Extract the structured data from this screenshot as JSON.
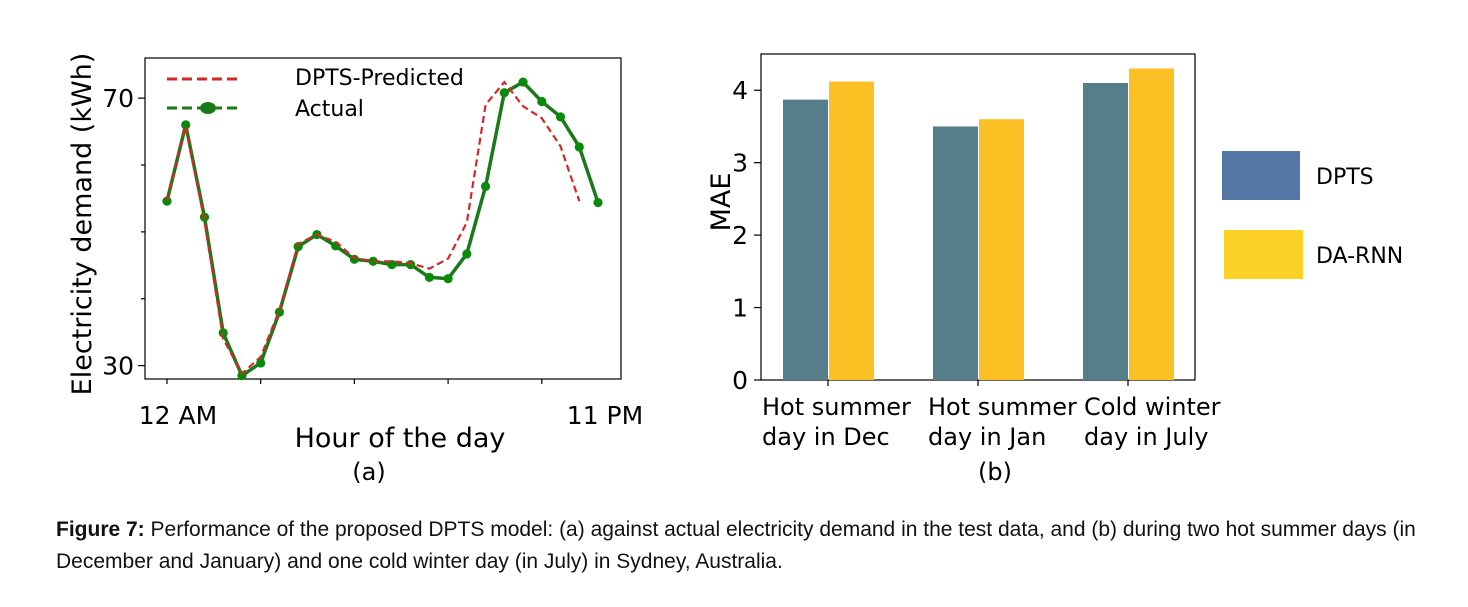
{
  "caption": {
    "label": "Figure 7:",
    "text": "Performance of the proposed DPTS model: (a) against actual electricity demand in the test data, and (b) during two hot summer days (in December and January) and one cold winter day (in July) in Sydney, Australia."
  },
  "chart_data": [
    {
      "type": "line",
      "panel_label": "(a)",
      "xlabel": "Hour of the day",
      "ylabel": "Electricity demand (kWh)",
      "x_tick_labels": [
        "12 AM",
        "11 PM"
      ],
      "y_tick_labels": [
        "30",
        "70"
      ],
      "ylim": [
        28,
        76
      ],
      "grid": false,
      "legend_position": "top-left",
      "x": [
        0,
        1,
        2,
        3,
        4,
        5,
        6,
        7,
        8,
        9,
        10,
        11,
        12,
        13,
        14,
        15,
        16,
        17,
        18,
        19,
        20,
        21,
        22,
        23
      ],
      "series": [
        {
          "name": "DPTS-Predicted",
          "color": "#d62728",
          "style": "dashed",
          "values": [
            54.7,
            65.8,
            51.6,
            34.0,
            28.8,
            31.3,
            38.3,
            48.2,
            49.6,
            48.5,
            46.1,
            45.6,
            45.6,
            45.3,
            44.5,
            46.0,
            51.4,
            69.0,
            72.4,
            68.8,
            67.0,
            62.8,
            54.6,
            null
          ]
        },
        {
          "name": "Actual",
          "color": "#1a7a1a",
          "style": "solid-markers",
          "marker_color": "#0a8a0a",
          "values": [
            54.6,
            66.0,
            52.2,
            34.9,
            28.5,
            30.4,
            38.0,
            47.8,
            49.6,
            47.9,
            45.9,
            45.6,
            45.1,
            45.1,
            43.2,
            43.0,
            46.7,
            56.8,
            70.8,
            72.4,
            69.5,
            67.2,
            62.7,
            54.4
          ]
        }
      ]
    },
    {
      "type": "bar",
      "panel_label": "(b)",
      "ylabel": "MAE",
      "xlabel": "",
      "categories": [
        [
          "Hot summer",
          "day in Dec"
        ],
        [
          "Hot summer",
          "day in Jan"
        ],
        [
          "Cold winter",
          "day in July"
        ]
      ],
      "ylim": [
        0,
        4.5
      ],
      "y_ticks": [
        0,
        1,
        2,
        3,
        4
      ],
      "grid": false,
      "legend_position": "right, outside",
      "series": [
        {
          "name": "DPTS",
          "color": "#567e8a",
          "legend_color": "#5577a6",
          "values": [
            3.87,
            3.5,
            4.1
          ]
        },
        {
          "name": "DA-RNN",
          "color": "#fcbf24",
          "legend_color": "#fcd126",
          "values": [
            4.12,
            3.6,
            4.3
          ]
        }
      ]
    }
  ]
}
